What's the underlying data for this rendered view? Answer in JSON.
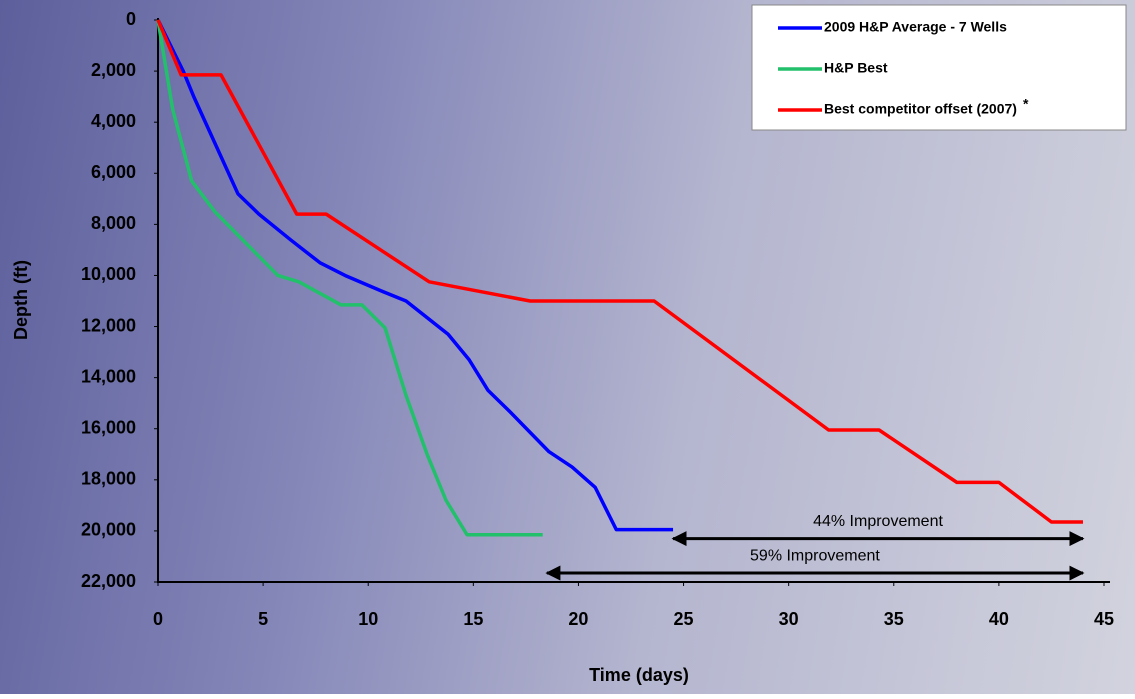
{
  "chart_data": {
    "type": "line",
    "x_label": "Time (days)",
    "y_label": "Depth (ft)",
    "xlim": [
      0,
      45
    ],
    "xticks": [
      0,
      5,
      10,
      15,
      20,
      25,
      30,
      35,
      40,
      45
    ],
    "ylim": [
      0,
      22000
    ],
    "y_inverted": true,
    "yticks": [
      0,
      {
        "value": 2000,
        "label": "2,000"
      },
      {
        "value": 4000,
        "label": "4,000"
      },
      {
        "value": 6000,
        "label": "6,000"
      },
      {
        "value": 8000,
        "label": "8,000"
      },
      {
        "value": 10000,
        "label": "10,000"
      },
      {
        "value": 12000,
        "label": "12,000"
      },
      {
        "value": 14000,
        "label": "14,000"
      },
      {
        "value": 16000,
        "label": "16,000"
      },
      {
        "value": 18000,
        "label": "18,000"
      },
      {
        "value": 20000,
        "label": "20,000"
      },
      {
        "value": 22000,
        "label": "22,000"
      }
    ],
    "legend": "top-right",
    "legend_note": "*",
    "series": [
      {
        "name": "2009 H&P Average - 7 Wells",
        "color": "#0000ff",
        "x": [
          0,
          1.2,
          1.7,
          3.8,
          4.8,
          6.3,
          7.7,
          8.9,
          10.6,
          11.8,
          13.8,
          14.8,
          15.7,
          16.7,
          18.6,
          19.7,
          20.8,
          21.8,
          24.5
        ],
        "values": [
          0,
          2000,
          3000,
          6800,
          7600,
          8600,
          9500,
          10000,
          10600,
          11000,
          12300,
          13300,
          14500,
          15300,
          16900,
          17500,
          18300,
          19950,
          19950
        ]
      },
      {
        "name": "H&P Best",
        "color": "#22c06a",
        "x": [
          0,
          0.7,
          1.6,
          2.7,
          5.7,
          6.7,
          8.7,
          9.7,
          10.8,
          11.8,
          12.8,
          13.7,
          14.7,
          18.3
        ],
        "values": [
          0,
          3500,
          6300,
          7500,
          10000,
          10250,
          11150,
          11150,
          12050,
          14700,
          17000,
          18800,
          20150,
          20150
        ]
      },
      {
        "name": "Best competitor offset (2007)",
        "color": "#ff0000",
        "x": [
          0,
          1.1,
          3,
          6.6,
          8,
          12.9,
          17.7,
          23.6,
          31.9,
          34.3,
          38,
          40,
          42.5,
          44
        ],
        "values": [
          0,
          2150,
          2150,
          7600,
          7600,
          10250,
          11000,
          11000,
          16050,
          16050,
          18100,
          18100,
          19650,
          19650
        ]
      }
    ],
    "annotations": [
      {
        "text": "44% Improvement",
        "from": 24.5,
        "to": 44,
        "y": 20300
      },
      {
        "text": "59% Improvement",
        "from": 18.5,
        "to": 44,
        "y": 21650
      }
    ]
  }
}
